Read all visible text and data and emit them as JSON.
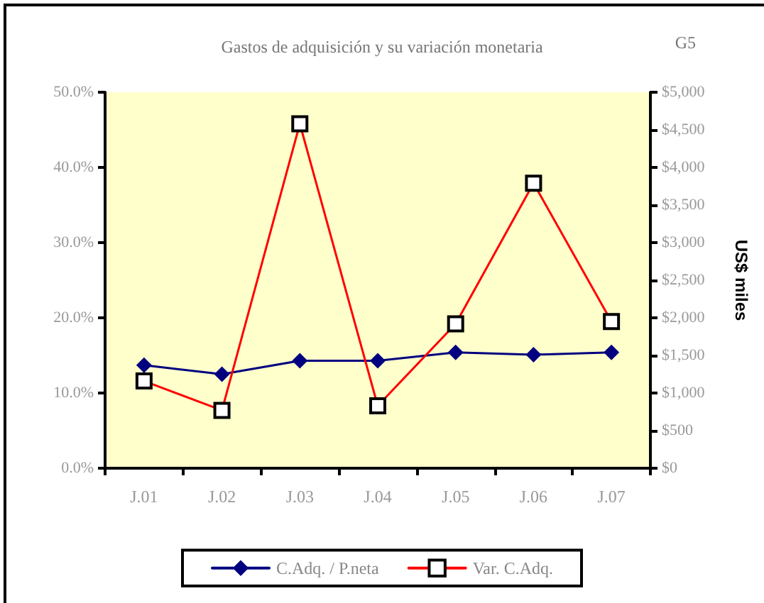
{
  "chart_data": {
    "type": "line",
    "title": "Gastos de adquisición y su variación monetaria",
    "annotations": [
      "G5"
    ],
    "y2label": "US$ miles",
    "categories": [
      "J.01",
      "J.02",
      "J.03",
      "J.04",
      "J.05",
      "J.06",
      "J.07"
    ],
    "series": [
      {
        "name": "C.Adq. / P.neta",
        "color": "#000080",
        "marker": "diamond",
        "values": [
          13.7,
          12.5,
          14.3,
          14.3,
          15.4,
          15.1,
          15.4
        ]
      },
      {
        "name": "Var. C.Adq.",
        "color": "#ff0000",
        "marker": "square",
        "axis": "y2",
        "values": [
          1160,
          770,
          4580,
          830,
          1920,
          3790,
          1950
        ]
      }
    ],
    "ylim": [
      0,
      50
    ],
    "yticks": [
      {
        "value": 0,
        "label": "0.0%"
      },
      {
        "value": 10,
        "label": "10.0%"
      },
      {
        "value": 20,
        "label": "20.0%"
      },
      {
        "value": 30,
        "label": "30.0%"
      },
      {
        "value": 40,
        "label": "40.0%"
      },
      {
        "value": 50,
        "label": "50.0%"
      }
    ],
    "y2lim": [
      0,
      5000
    ],
    "y2ticks": [
      {
        "value": 0,
        "label": "$0"
      },
      {
        "value": 500,
        "label": "$500"
      },
      {
        "value": 1000,
        "label": "$1,000"
      },
      {
        "value": 1500,
        "label": "$1,500"
      },
      {
        "value": 2000,
        "label": "$2,000"
      },
      {
        "value": 2500,
        "label": "$2,500"
      },
      {
        "value": 3000,
        "label": "$3,000"
      },
      {
        "value": 3500,
        "label": "$3,500"
      },
      {
        "value": 4000,
        "label": "$4,000"
      },
      {
        "value": 4500,
        "label": "$4,500"
      },
      {
        "value": 5000,
        "label": "$5,000"
      }
    ],
    "grid": false,
    "legend": "bottom"
  }
}
